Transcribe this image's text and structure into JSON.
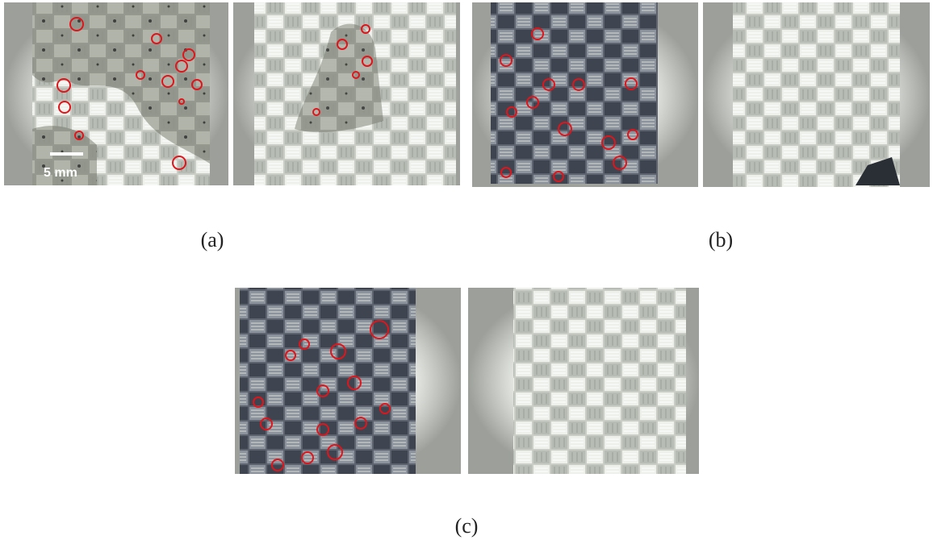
{
  "figure": {
    "scale_bar": "5 mm",
    "panels": [
      {
        "label": "(a)"
      },
      {
        "label": "(b)"
      },
      {
        "label": "(c)"
      }
    ]
  }
}
